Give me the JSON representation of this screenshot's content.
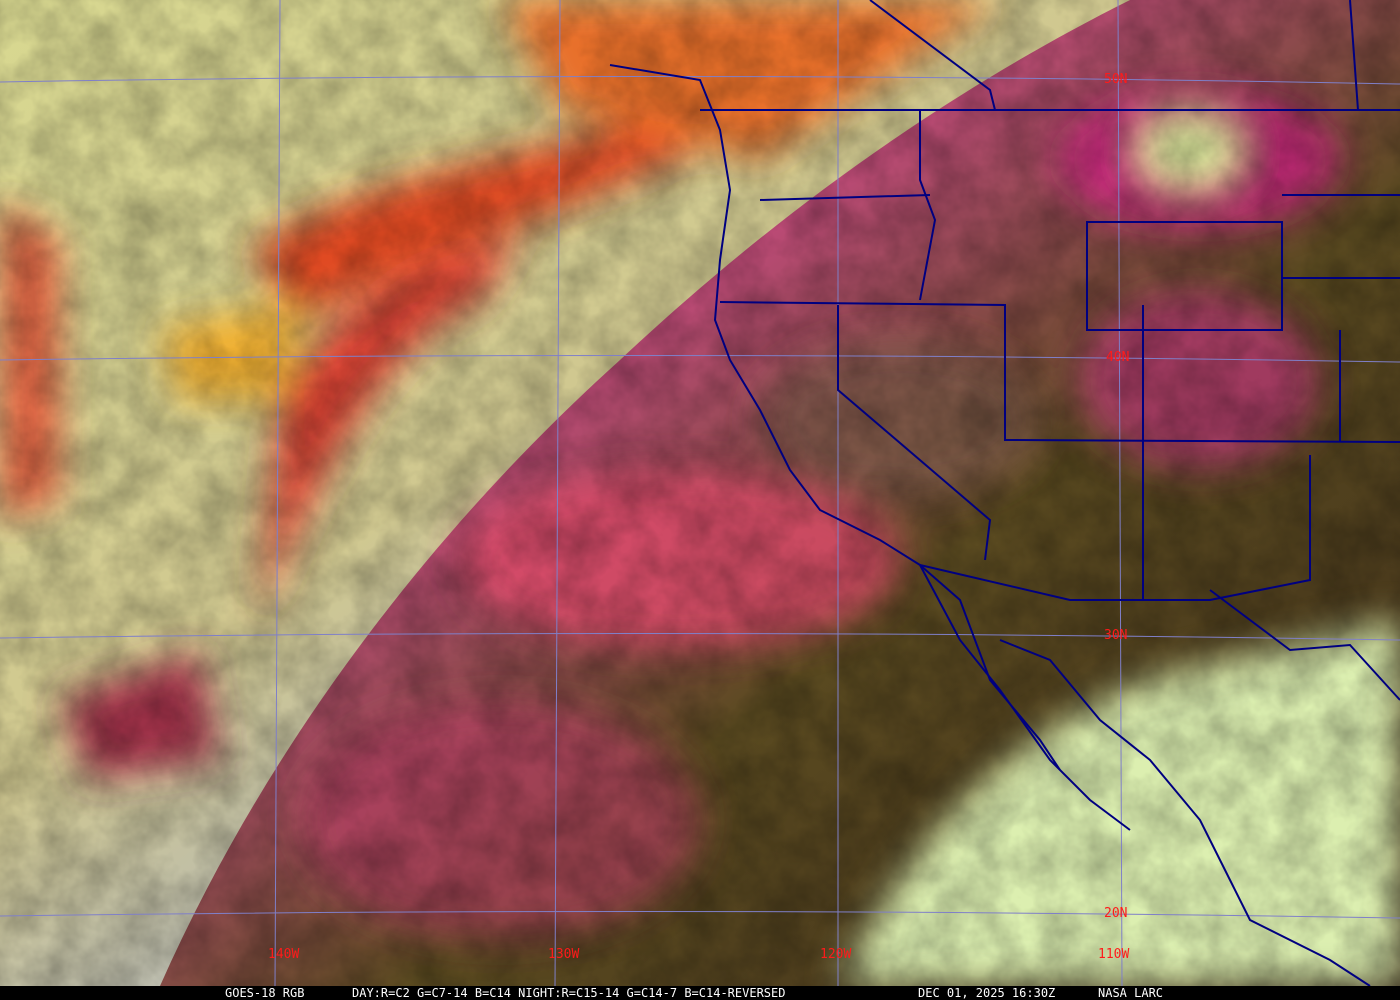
{
  "product": "GOES-18 RGB",
  "recipe": "DAY:R=C2 G=C7-14 B=C14 NIGHT:R=C15-14 G=C14-7 B=C14-REVERSED",
  "timestamp": "DEC 01, 2025 16:30Z",
  "credit": "NASA LARC",
  "map": {
    "longitude_labels": [
      "140W",
      "130W",
      "120W",
      "110W"
    ],
    "latitude_labels": [
      "50N",
      "40N",
      "30N",
      "20N"
    ],
    "colors": {
      "grid": "#7f7fc8",
      "borders": "#000080",
      "labels": "#ff1a1a"
    }
  }
}
